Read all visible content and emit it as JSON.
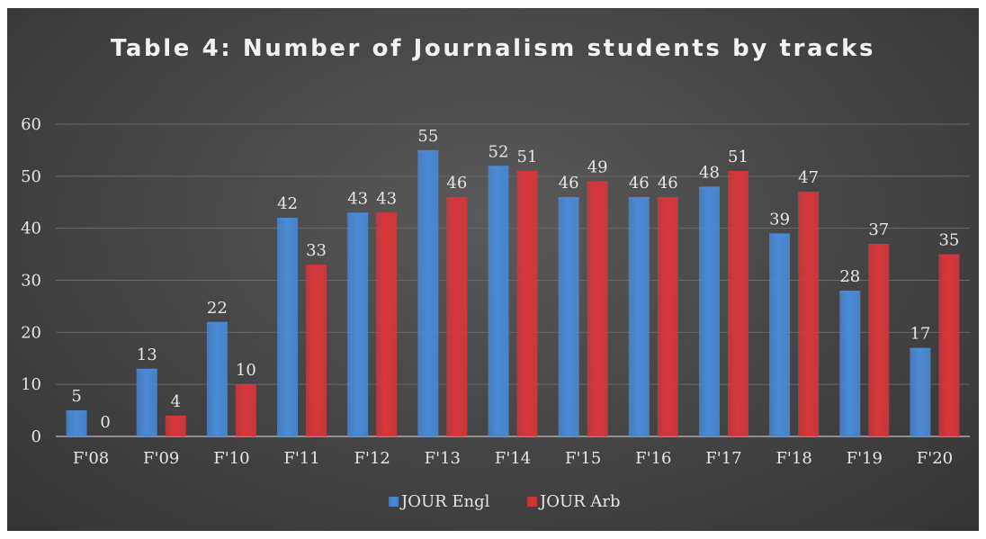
{
  "chart_data": {
    "type": "bar",
    "title": "Table 4: Number of Journalism students by tracks",
    "categories": [
      "F'08",
      "F'09",
      "F'10",
      "F'11",
      "F'12",
      "F'13",
      "F'14",
      "F'15",
      "F'16",
      "F'17",
      "F'18",
      "F'19",
      "F'20"
    ],
    "series": [
      {
        "name": "JOUR Engl",
        "color": "#4a8bd8",
        "values": [
          5,
          13,
          22,
          42,
          43,
          55,
          52,
          46,
          46,
          48,
          39,
          28,
          17
        ]
      },
      {
        "name": "JOUR Arb",
        "color": "#d9363a",
        "values": [
          0,
          4,
          10,
          33,
          43,
          46,
          51,
          49,
          46,
          51,
          47,
          37,
          35
        ]
      }
    ],
    "ylim": [
      0,
      60
    ],
    "yticks": [
      0,
      10,
      20,
      30,
      40,
      50,
      60
    ],
    "grid": true,
    "legend": "bottom"
  }
}
